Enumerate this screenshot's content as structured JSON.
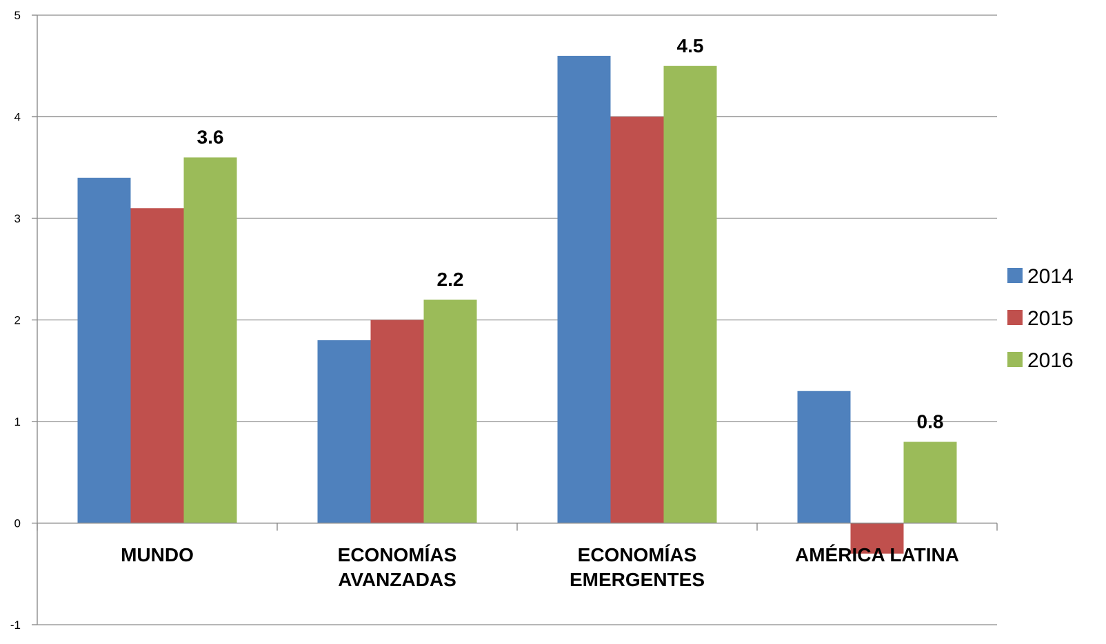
{
  "chart_data": {
    "type": "bar",
    "title": "",
    "xlabel": "",
    "ylabel": "",
    "ylim": [
      -1,
      5
    ],
    "yticks": [
      5,
      4,
      3,
      2,
      1,
      0,
      -1
    ],
    "grid": true,
    "legend_position": "right",
    "categories": [
      [
        "MUNDO"
      ],
      [
        "ECONOMÍAS",
        "AVANZADAS"
      ],
      [
        "ECONOMÍAS",
        "EMERGENTES"
      ],
      [
        "AMÉRICA LATINA"
      ]
    ],
    "series": [
      {
        "name": "2014",
        "color": "#4F81BD",
        "values": [
          3.4,
          1.8,
          4.6,
          1.3
        ]
      },
      {
        "name": "2015",
        "color": "#C0504D",
        "values": [
          3.1,
          2.0,
          4.0,
          -0.3
        ]
      },
      {
        "name": "2016",
        "color": "#9BBB59",
        "values": [
          3.6,
          2.2,
          4.5,
          0.8
        ]
      }
    ],
    "data_labels": {
      "series_index": 2,
      "texts": [
        "3.6",
        "2.2",
        "4.5",
        "0.8"
      ]
    }
  }
}
